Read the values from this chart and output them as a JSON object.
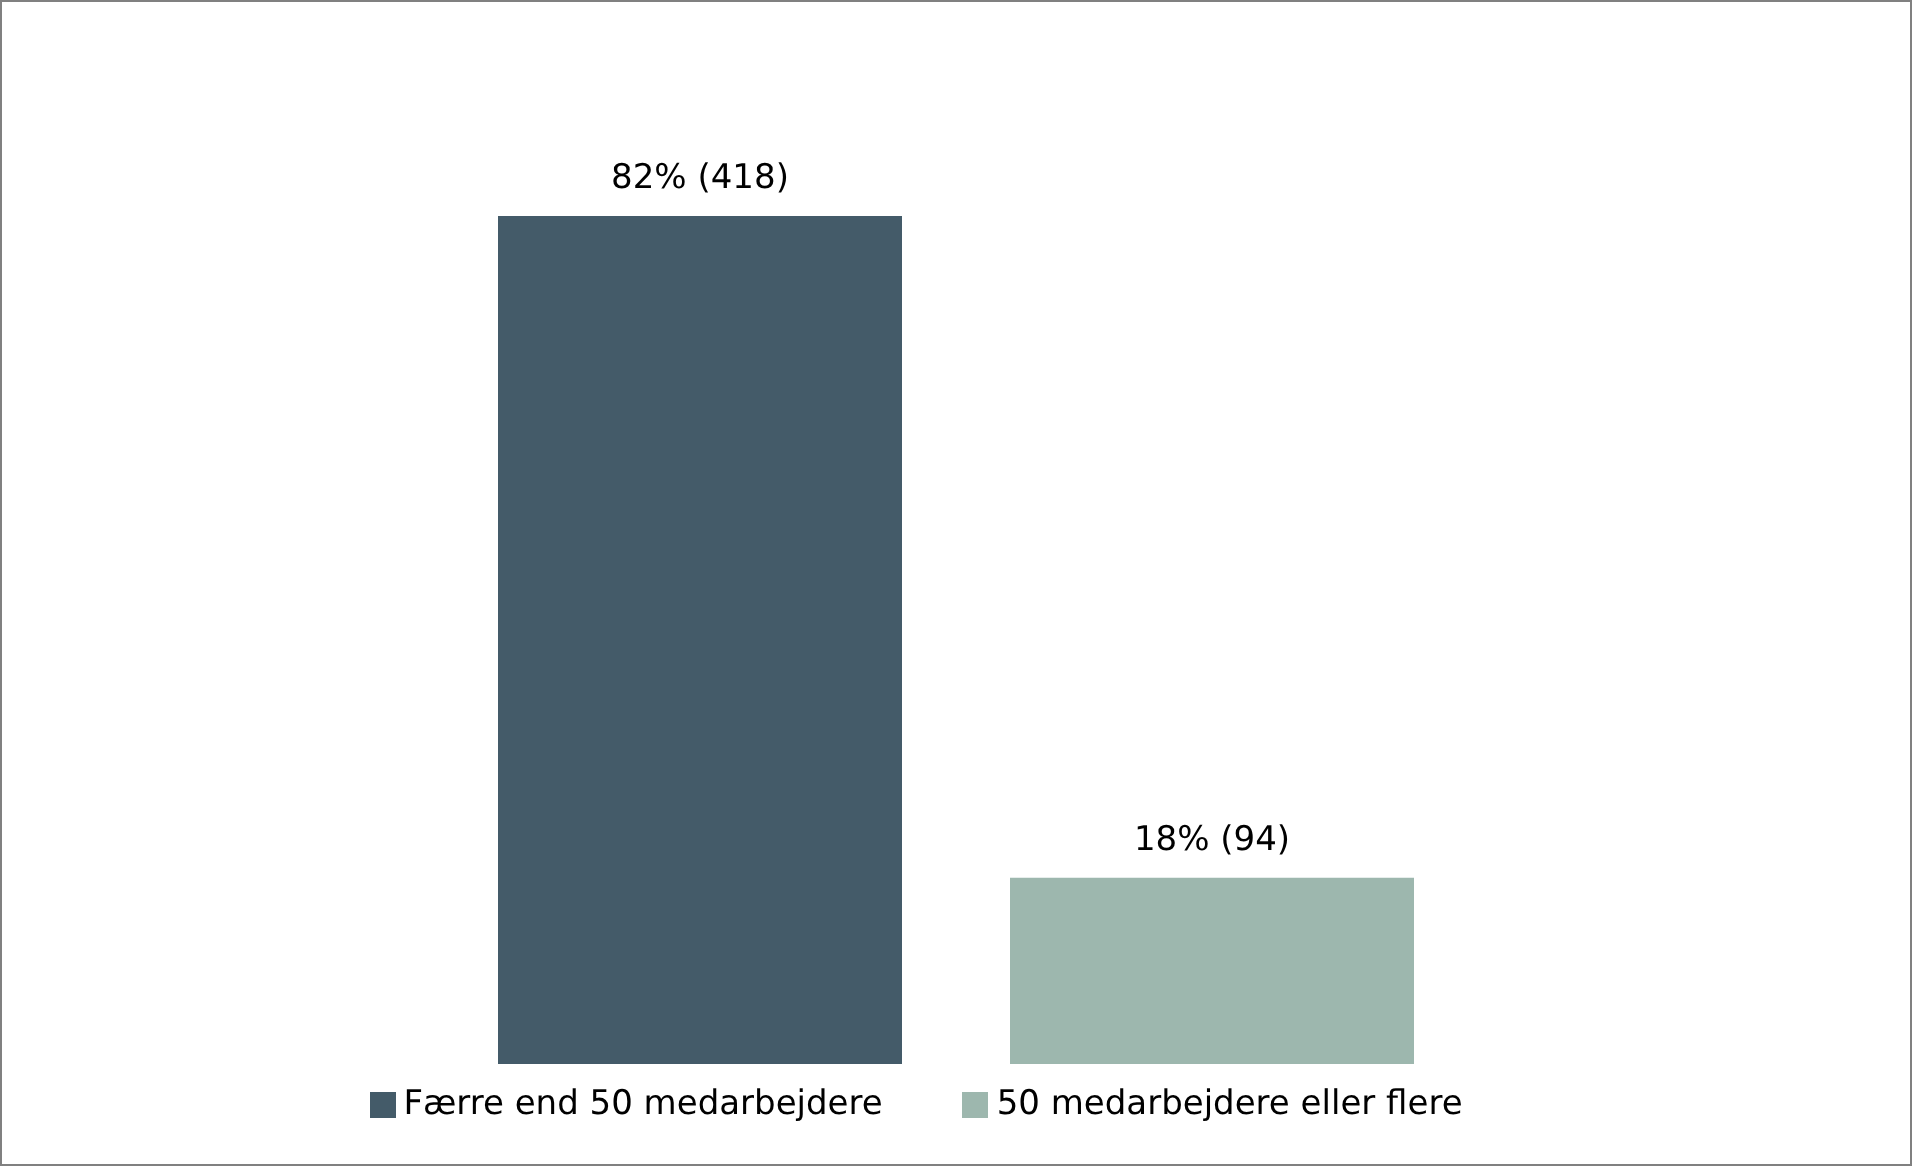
{
  "chart_data": {
    "type": "bar",
    "categories": [
      null
    ],
    "series": [
      {
        "name": "Færre end 50 medarbejdere",
        "color": "#445b69",
        "values": [
          82
        ],
        "value_labels": [
          "82% (418)"
        ]
      },
      {
        "name": "50 medarbejdere eller flere",
        "color": "#9db7ae",
        "values": [
          18
        ],
        "value_labels": [
          "18% (94)"
        ]
      }
    ],
    "legend": "bottom"
  }
}
